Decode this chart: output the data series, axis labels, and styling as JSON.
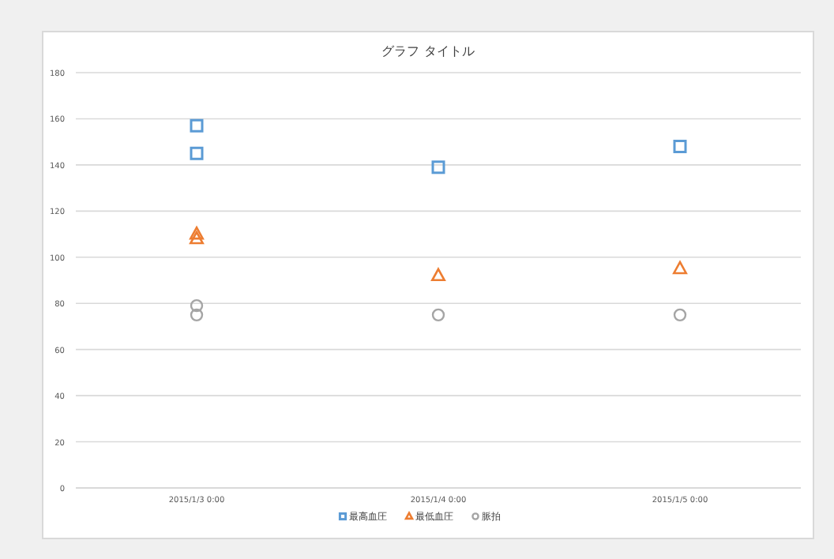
{
  "chart_data": {
    "type": "scatter",
    "title": "グラフ タイトル",
    "categories": [
      "2015/1/3 0:00",
      "2015/1/4 0:00",
      "2015/1/5 0:00"
    ],
    "series": [
      {
        "name": "最高血圧",
        "color": "#5b9bd5",
        "marker": "square",
        "x": [
          "2015/1/3 0:00",
          "2015/1/3 0:00",
          "2015/1/4 0:00",
          "2015/1/5 0:00"
        ],
        "values": [
          157,
          145,
          139,
          148
        ]
      },
      {
        "name": "最低血圧",
        "color": "#ed7d31",
        "marker": "triangle",
        "x": [
          "2015/1/3 0:00",
          "2015/1/3 0:00",
          "2015/1/4 0:00",
          "2015/1/5 0:00"
        ],
        "values": [
          110,
          108,
          92,
          95
        ]
      },
      {
        "name": "脈拍",
        "color": "#a5a5a5",
        "marker": "circle",
        "x": [
          "2015/1/3 0:00",
          "2015/1/3 0:00",
          "2015/1/4 0:00",
          "2015/1/5 0:00"
        ],
        "values": [
          79,
          75,
          75,
          75
        ]
      }
    ],
    "ylim": [
      0,
      180
    ],
    "yticks": [
      0,
      20,
      40,
      60,
      80,
      100,
      120,
      140,
      160,
      180
    ],
    "grid": "y",
    "legend": "bottom"
  }
}
